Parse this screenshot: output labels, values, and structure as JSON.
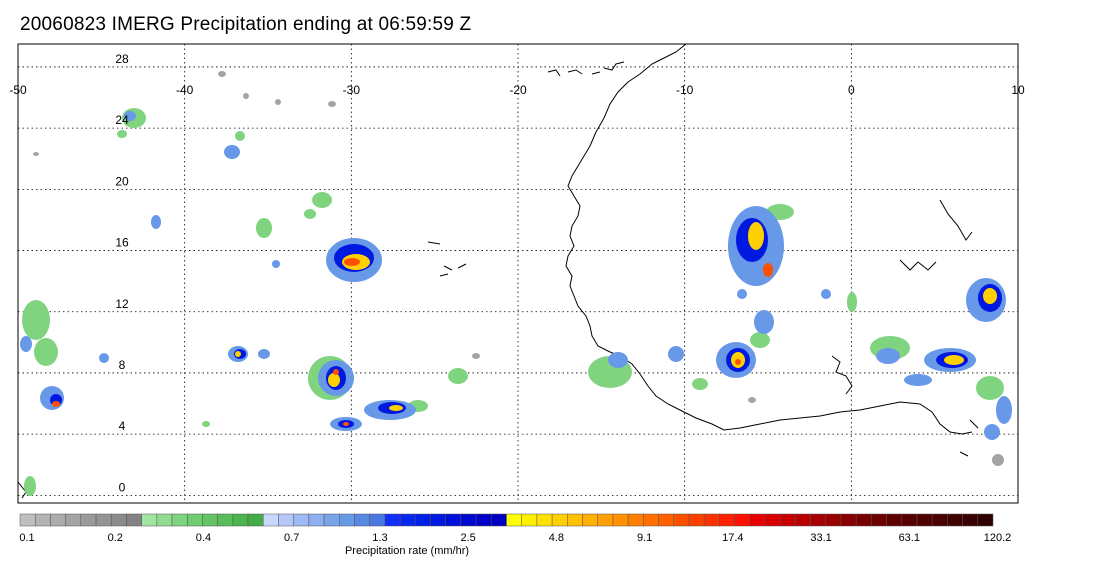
{
  "title": "20060823 IMERG Precipitation ending at 06:59:59 Z",
  "map": {
    "lon_ticks": [
      "-50",
      "-40",
      "-30",
      "-20",
      "-10",
      "0",
      "10"
    ],
    "lat_ticks": [
      "28",
      "24",
      "20",
      "16",
      "12",
      "8",
      "4",
      "0"
    ],
    "lon_range": [
      -50,
      10
    ],
    "lat_range": [
      -0.5,
      29.5
    ],
    "grid": true
  },
  "colorbar": {
    "label": "Precipitation rate (mm/hr)",
    "tick_labels": [
      "0.1",
      "0.2",
      "0.4",
      "0.7",
      "1.3",
      "2.5",
      "4.8",
      "9.1",
      "17.4",
      "33.1",
      "63.1",
      "120.2"
    ],
    "colors": [
      "#bfbfbf",
      "#b3b3b3",
      "#acacac",
      "#a3a3a3",
      "#9b9b9b",
      "#939393",
      "#8b8b8b",
      "#838383",
      "#a0e6a0",
      "#90dc90",
      "#80d480",
      "#70cc70",
      "#64c464",
      "#58bc58",
      "#4cb44c",
      "#44ac44",
      "#c8d8ff",
      "#b4c8f8",
      "#a0b8f4",
      "#8cb0f0",
      "#78a4ec",
      "#6898e8",
      "#5888e4",
      "#4878e0",
      "#1030ff",
      "#0828f0",
      "#0020e8",
      "#0018e0",
      "#0010d8",
      "#0008d0",
      "#0000c8",
      "#0000c0",
      "#ffff00",
      "#fff000",
      "#ffe000",
      "#ffd000",
      "#ffc000",
      "#ffb000",
      "#ffa000",
      "#ff9000",
      "#ff8000",
      "#ff7000",
      "#ff6000",
      "#ff5000",
      "#ff4000",
      "#ff3000",
      "#ff2000",
      "#ff1000",
      "#e80000",
      "#d80000",
      "#c80000",
      "#b80000",
      "#a80000",
      "#980000",
      "#880000",
      "#780000",
      "#6a0000",
      "#600000",
      "#580000",
      "#500000",
      "#480000",
      "#400000",
      "#380000",
      "#300000"
    ]
  }
}
